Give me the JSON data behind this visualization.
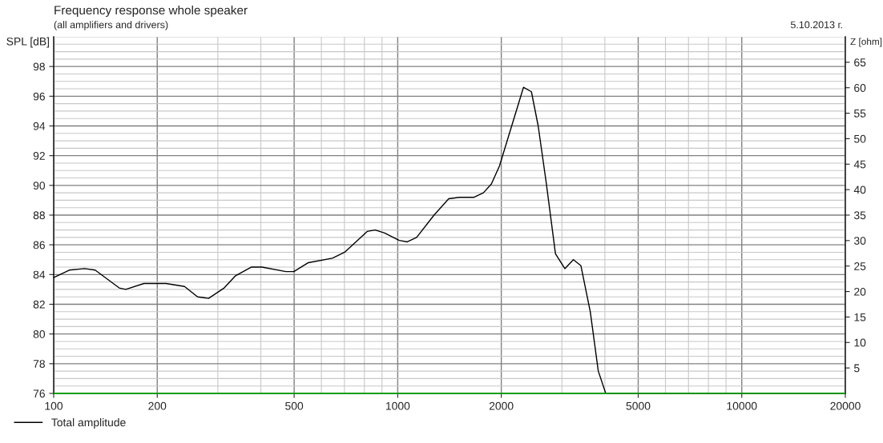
{
  "chart_data": {
    "type": "line",
    "title": "Frequency response whole speaker",
    "subtitle": "(all amplifiers and drivers)",
    "ylabel": "SPL [dB]",
    "y2label": "Z [ohm]",
    "annotations": [
      "5.10.2013 г."
    ],
    "log": "x",
    "grid": true,
    "legend": "bottom left",
    "line_style": "solid",
    "marker": "none",
    "xlim": [
      100,
      20000
    ],
    "xticks": [
      100,
      200,
      500,
      1000,
      2000,
      5000,
      10000,
      20000
    ],
    "ylim": [
      76,
      100
    ],
    "yticks": [
      76,
      78,
      80,
      82,
      84,
      86,
      88,
      90,
      92,
      94,
      96,
      98
    ],
    "y2lim": [
      0,
      70
    ],
    "y2ticks": [
      5,
      10,
      15,
      20,
      25,
      30,
      35,
      40,
      45,
      50,
      55,
      60,
      65
    ],
    "series": [
      {
        "name": "Total amplitude",
        "color": "#000000",
        "x": [
          100,
          111,
          123,
          132,
          155,
          162,
          183,
          212,
          240,
          262,
          282,
          313,
          337,
          375,
          403,
          473,
          499,
          550,
          646,
          701,
          815,
          860,
          916,
          1010,
          1066,
          1135,
          1275,
          1407,
          1511,
          1667,
          1774,
          1872,
          1975,
          2320,
          2447,
          2560,
          2701,
          2874,
          3060,
          3241,
          3407,
          3628,
          3828,
          4024,
          20000
        ],
        "values": [
          83.8,
          84.3,
          84.4,
          84.3,
          83.1,
          83.0,
          83.4,
          83.4,
          83.2,
          82.5,
          82.4,
          83.1,
          83.9,
          84.5,
          84.5,
          84.2,
          84.2,
          84.8,
          85.1,
          85.5,
          86.9,
          87.0,
          86.8,
          86.3,
          86.2,
          86.5,
          88.0,
          89.1,
          89.2,
          89.2,
          89.5,
          90.1,
          91.3,
          96.6,
          96.3,
          94.0,
          90.2,
          85.4,
          84.4,
          85.0,
          84.6,
          81.5,
          77.5,
          76.0,
          76.0
        ]
      },
      {
        "color": "#00c000",
        "axis": "y2",
        "x": [
          100,
          20000
        ],
        "values": [
          0,
          0
        ]
      }
    ]
  }
}
